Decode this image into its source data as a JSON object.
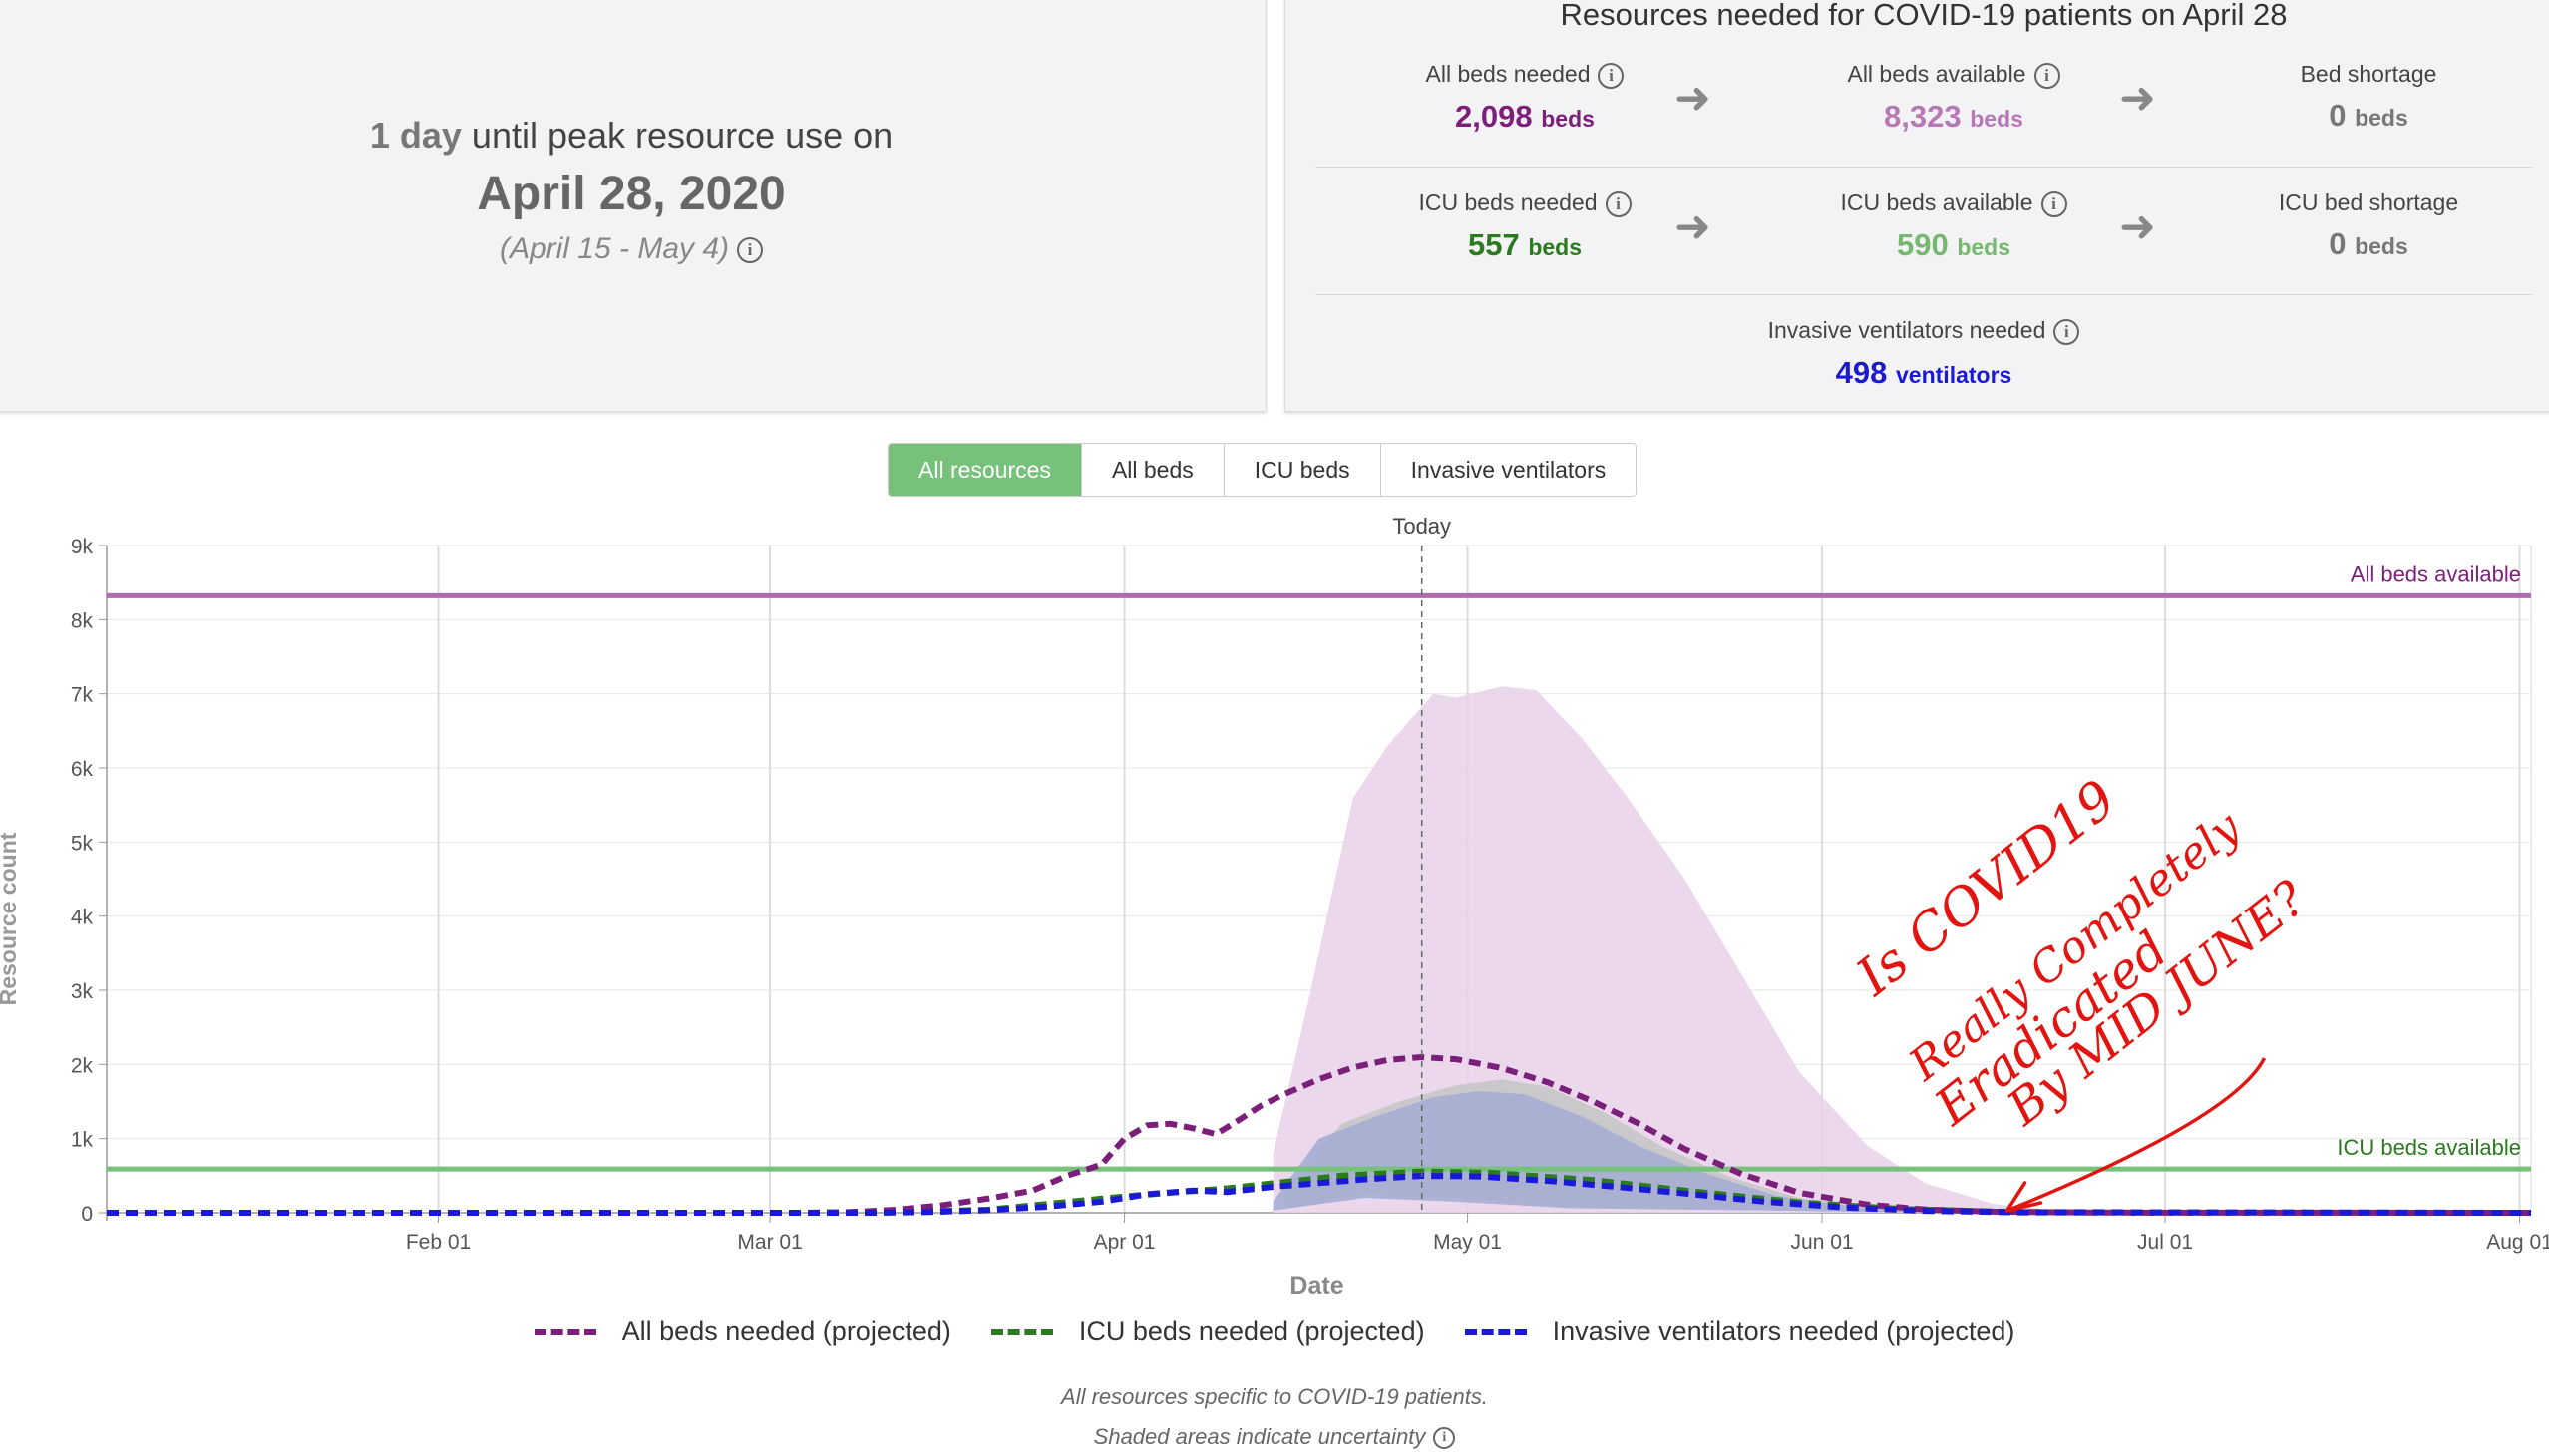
{
  "peak": {
    "days": "1",
    "days_unit": "day",
    "text": "until peak resource use on",
    "date": "April 28, 2020",
    "range": "(April 15 - May 4)"
  },
  "resources": {
    "title": "Resources needed for COVID-19 patients on April 28",
    "all_beds_needed": {
      "label": "All beds needed",
      "value": "2,098",
      "unit": "beds"
    },
    "all_beds_available": {
      "label": "All beds available",
      "value": "8,323",
      "unit": "beds"
    },
    "bed_shortage": {
      "label": "Bed shortage",
      "value": "0",
      "unit": "beds"
    },
    "icu_beds_needed": {
      "label": "ICU beds needed",
      "value": "557",
      "unit": "beds"
    },
    "icu_beds_available": {
      "label": "ICU beds available",
      "value": "590",
      "unit": "beds"
    },
    "icu_bed_shortage": {
      "label": "ICU bed shortage",
      "value": "0",
      "unit": "beds"
    },
    "ventilators_needed": {
      "label": "Invasive ventilators needed",
      "value": "498",
      "unit": "ventilators"
    },
    "colors": {
      "all_beds": "#7b1f7b",
      "all_beds_available": "#b678b6",
      "icu": "#2b7a1f",
      "icu_available": "#76b86f",
      "vent": "#1a1ad6"
    }
  },
  "tabs": [
    "All resources",
    "All beds",
    "ICU beds",
    "Invasive ventilators"
  ],
  "active_tab": 0,
  "chart_data": {
    "type": "line",
    "xlabel": "Date",
    "ylabel": "Resource count",
    "ylim": [
      0,
      9000
    ],
    "yticks": [
      "0",
      "1k",
      "2k",
      "3k",
      "4k",
      "5k",
      "6k",
      "7k",
      "8k",
      "9k"
    ],
    "xlim": [
      "2020-01-03",
      "2020-08-02"
    ],
    "xticks": [
      {
        "label": "Feb 01",
        "date": "2020-02-01"
      },
      {
        "label": "Mar 01",
        "date": "2020-03-01"
      },
      {
        "label": "Apr 01",
        "date": "2020-04-01"
      },
      {
        "label": "May 01",
        "date": "2020-05-01"
      },
      {
        "label": "Jun 01",
        "date": "2020-06-01"
      },
      {
        "label": "Jul 01",
        "date": "2020-07-01"
      },
      {
        "label": "Aug 01",
        "date": "2020-08-01"
      }
    ],
    "today": {
      "label": "Today",
      "date": "2020-04-27"
    },
    "grid": true,
    "hlines": [
      {
        "name": "All beds available",
        "value": 8323,
        "color": "#b06ab0"
      },
      {
        "name": "ICU beds available",
        "value": 590,
        "color": "#76c27b"
      }
    ],
    "series": [
      {
        "name": "All beds needed (projected)",
        "color": "#7b1f7b",
        "points": [
          [
            "2020-01-03",
            0
          ],
          [
            "2020-03-04",
            0
          ],
          [
            "2020-03-08",
            10
          ],
          [
            "2020-03-12",
            40
          ],
          [
            "2020-03-16",
            100
          ],
          [
            "2020-03-20",
            190
          ],
          [
            "2020-03-24",
            300
          ],
          [
            "2020-03-27",
            500
          ],
          [
            "2020-03-30",
            650
          ],
          [
            "2020-04-01",
            1000
          ],
          [
            "2020-04-03",
            1180
          ],
          [
            "2020-04-05",
            1200
          ],
          [
            "2020-04-07",
            1140
          ],
          [
            "2020-04-09",
            1060
          ],
          [
            "2020-04-11",
            1250
          ],
          [
            "2020-04-13",
            1450
          ],
          [
            "2020-04-15",
            1600
          ],
          [
            "2020-04-18",
            1800
          ],
          [
            "2020-04-21",
            1960
          ],
          [
            "2020-04-24",
            2060
          ],
          [
            "2020-04-27",
            2098
          ],
          [
            "2020-04-30",
            2070
          ],
          [
            "2020-05-04",
            1950
          ],
          [
            "2020-05-08",
            1760
          ],
          [
            "2020-05-12",
            1500
          ],
          [
            "2020-05-16",
            1200
          ],
          [
            "2020-05-20",
            860
          ],
          [
            "2020-05-25",
            520
          ],
          [
            "2020-05-30",
            270
          ],
          [
            "2020-06-05",
            110
          ],
          [
            "2020-06-10",
            45
          ],
          [
            "2020-06-16",
            15
          ],
          [
            "2020-06-25",
            3
          ],
          [
            "2020-08-02",
            0
          ]
        ]
      },
      {
        "name": "ICU beds needed (projected)",
        "color": "#2b7a1f",
        "points": [
          [
            "2020-01-03",
            0
          ],
          [
            "2020-03-10",
            0
          ],
          [
            "2020-03-20",
            40
          ],
          [
            "2020-04-01",
            220
          ],
          [
            "2020-04-10",
            330
          ],
          [
            "2020-04-20",
            500
          ],
          [
            "2020-04-27",
            557
          ],
          [
            "2020-05-03",
            540
          ],
          [
            "2020-05-12",
            440
          ],
          [
            "2020-05-20",
            300
          ],
          [
            "2020-05-30",
            140
          ],
          [
            "2020-06-08",
            50
          ],
          [
            "2020-06-18",
            10
          ],
          [
            "2020-08-02",
            0
          ]
        ]
      },
      {
        "name": "Invasive ventilators needed (projected)",
        "color": "#1a1ad6",
        "points": [
          [
            "2020-01-03",
            0
          ],
          [
            "2020-03-10",
            0
          ],
          [
            "2020-03-15",
            10
          ],
          [
            "2020-03-20",
            35
          ],
          [
            "2020-03-25",
            80
          ],
          [
            "2020-03-30",
            150
          ],
          [
            "2020-04-03",
            250
          ],
          [
            "2020-04-07",
            300
          ],
          [
            "2020-04-10",
            280
          ],
          [
            "2020-04-14",
            350
          ],
          [
            "2020-04-18",
            400
          ],
          [
            "2020-04-22",
            450
          ],
          [
            "2020-04-27",
            498
          ],
          [
            "2020-05-02",
            490
          ],
          [
            "2020-05-08",
            430
          ],
          [
            "2020-05-14",
            350
          ],
          [
            "2020-05-20",
            260
          ],
          [
            "2020-05-27",
            150
          ],
          [
            "2020-06-03",
            70
          ],
          [
            "2020-06-10",
            25
          ],
          [
            "2020-06-18",
            5
          ],
          [
            "2020-08-02",
            0
          ]
        ]
      }
    ],
    "bands": [
      {
        "name": "All beds needed uncertainty",
        "color": "#e7d1e9",
        "upper": [
          [
            "2020-04-14",
            800
          ],
          [
            "2020-04-17",
            2800
          ],
          [
            "2020-04-21",
            5600
          ],
          [
            "2020-04-24",
            6300
          ],
          [
            "2020-04-28",
            7000
          ],
          [
            "2020-04-30",
            6950
          ],
          [
            "2020-05-04",
            7100
          ],
          [
            "2020-05-07",
            7050
          ],
          [
            "2020-05-11",
            6400
          ],
          [
            "2020-05-15",
            5600
          ],
          [
            "2020-05-20",
            4500
          ],
          [
            "2020-05-25",
            3200
          ],
          [
            "2020-05-30",
            1900
          ],
          [
            "2020-06-05",
            900
          ],
          [
            "2020-06-10",
            400
          ],
          [
            "2020-06-16",
            120
          ],
          [
            "2020-06-22",
            20
          ]
        ],
        "lower": [
          [
            "2020-06-22",
            0
          ],
          [
            "2020-04-14",
            0
          ]
        ]
      },
      {
        "name": "ICU beds needed uncertainty",
        "color": "#c6c6c6",
        "upper": [
          [
            "2020-04-15",
            300
          ],
          [
            "2020-04-20",
            1200
          ],
          [
            "2020-04-25",
            1500
          ],
          [
            "2020-04-30",
            1720
          ],
          [
            "2020-05-04",
            1800
          ],
          [
            "2020-05-08",
            1700
          ],
          [
            "2020-05-13",
            1350
          ],
          [
            "2020-05-18",
            900
          ],
          [
            "2020-05-24",
            480
          ],
          [
            "2020-05-30",
            200
          ],
          [
            "2020-06-08",
            40
          ],
          [
            "2020-06-15",
            5
          ]
        ],
        "lower": [
          [
            "2020-06-15",
            0
          ],
          [
            "2020-05-10",
            80
          ],
          [
            "2020-04-30",
            200
          ],
          [
            "2020-04-22",
            250
          ],
          [
            "2020-04-15",
            50
          ]
        ]
      },
      {
        "name": "Invasive ventilators needed uncertainty",
        "color": "#a3acd4",
        "upper": [
          [
            "2020-04-14",
            150
          ],
          [
            "2020-04-18",
            1000
          ],
          [
            "2020-04-23",
            1300
          ],
          [
            "2020-04-28",
            1560
          ],
          [
            "2020-05-02",
            1640
          ],
          [
            "2020-05-06",
            1600
          ],
          [
            "2020-05-11",
            1300
          ],
          [
            "2020-05-16",
            900
          ],
          [
            "2020-05-22",
            520
          ],
          [
            "2020-05-28",
            230
          ],
          [
            "2020-06-05",
            60
          ],
          [
            "2020-06-12",
            5
          ]
        ],
        "lower": [
          [
            "2020-06-12",
            0
          ],
          [
            "2020-05-10",
            60
          ],
          [
            "2020-04-30",
            150
          ],
          [
            "2020-04-22",
            200
          ],
          [
            "2020-04-14",
            30
          ]
        ]
      }
    ]
  },
  "annotation": {
    "text_lines": [
      "Is COVID19",
      "Really Completely",
      "Eradicated",
      "By MID JUNE?"
    ],
    "color": "#e3140f"
  },
  "legend": [
    {
      "label": "All beds needed (projected)",
      "color": "#7b1f7b"
    },
    {
      "label": "ICU beds needed (projected)",
      "color": "#2b7a1f"
    },
    {
      "label": "Invasive ventilators needed (projected)",
      "color": "#1a1ad6"
    }
  ],
  "footnotes": {
    "line1": "All resources specific to COVID-19 patients.",
    "line2": "Shaded areas indicate uncertainty"
  }
}
